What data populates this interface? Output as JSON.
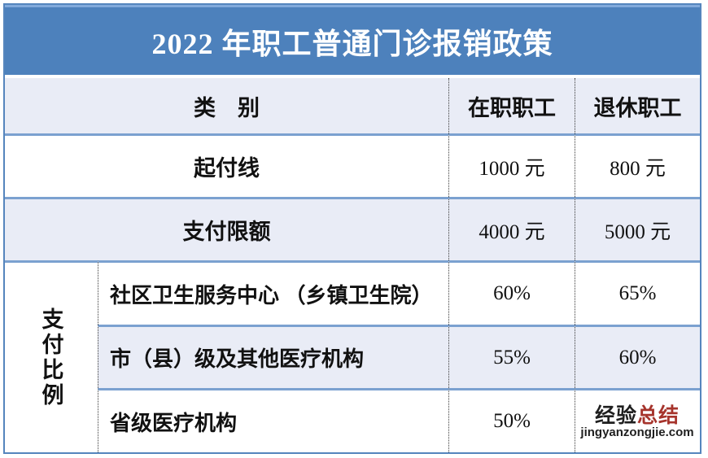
{
  "title": "2022 年职工普通门诊报销政策",
  "table": {
    "header": {
      "category": "类　别",
      "col_active": "在职职工",
      "col_retired": "退休职工"
    },
    "rows": [
      {
        "label": "起付线",
        "active": "1000 元",
        "retired": "800 元"
      },
      {
        "label": "支付限额",
        "active": "4000 元",
        "retired": "5000 元"
      }
    ],
    "ratio_section": {
      "label": "支付比例",
      "rows": [
        {
          "label": "社区卫生服务中心 （乡镇卫生院）",
          "active": "60%",
          "retired": "65%"
        },
        {
          "label": "市（县）级及其他医疗机构",
          "active": "55%",
          "retired": "60%"
        },
        {
          "label": "省级医疗机构",
          "active": "50%",
          "retired": ""
        }
      ]
    }
  },
  "watermark": {
    "brand_black": "经验",
    "brand_red": "总结",
    "domain": "jingyanzongjie.com"
  },
  "colors": {
    "title_bar": "#4d81bc",
    "row_light": "#e9ecf6",
    "row_line": "#7ba1d0",
    "outer_border": "#5585bd",
    "watermark_red": "#a6342c"
  }
}
